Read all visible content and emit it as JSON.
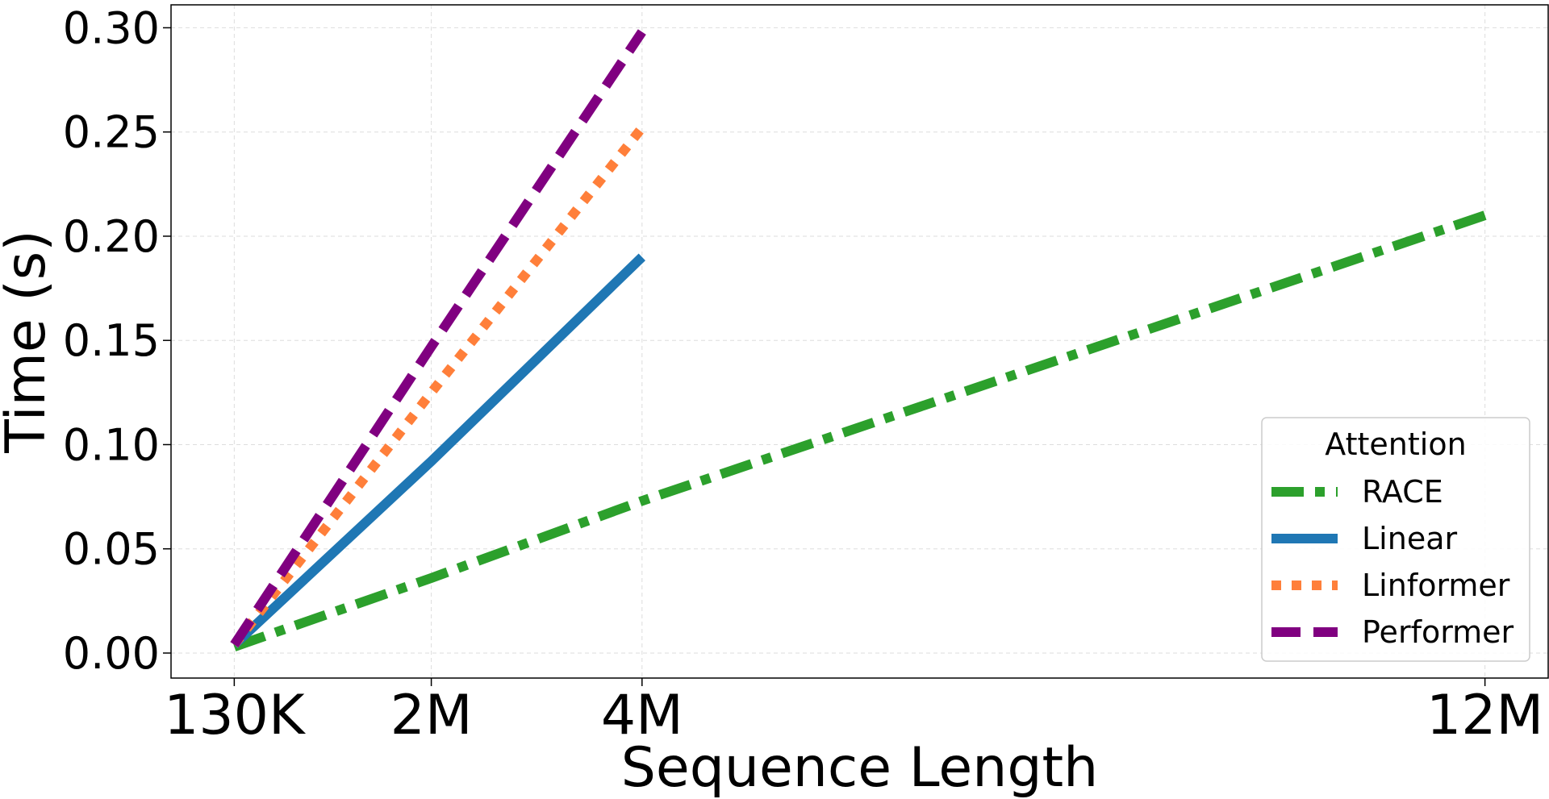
{
  "chart_data": {
    "type": "line",
    "title": "",
    "xlabel": "Sequence Length",
    "ylabel": "Time (s)",
    "x_ticks": [
      {
        "value": 130000,
        "label": "130K"
      },
      {
        "value": 2000000,
        "label": "2M"
      },
      {
        "value": 4000000,
        "label": "4M"
      },
      {
        "value": 12000000,
        "label": "12M"
      }
    ],
    "y_ticks": [
      {
        "value": 0.0,
        "label": "0.00"
      },
      {
        "value": 0.05,
        "label": "0.05"
      },
      {
        "value": 0.1,
        "label": "0.10"
      },
      {
        "value": 0.15,
        "label": "0.15"
      },
      {
        "value": 0.2,
        "label": "0.20"
      },
      {
        "value": 0.25,
        "label": "0.25"
      },
      {
        "value": 0.3,
        "label": "0.30"
      }
    ],
    "xlim": [
      -470000,
      12600000
    ],
    "ylim": [
      -0.012,
      0.311
    ],
    "grid": true,
    "legend": {
      "title": "Attention",
      "position": "lower-right"
    },
    "series": [
      {
        "name": "RACE",
        "color": "#2ca02c",
        "style": "dashdot",
        "x": [
          130000,
          2000000,
          4000000,
          12000000
        ],
        "y": [
          0.003,
          0.036,
          0.073,
          0.21
        ]
      },
      {
        "name": "Linear",
        "color": "#1f77b4",
        "style": "solid",
        "x": [
          130000,
          2000000,
          4000000
        ],
        "y": [
          0.004,
          0.092,
          0.19
        ]
      },
      {
        "name": "Linformer",
        "color": "#ff7f3a",
        "style": "dotted",
        "x": [
          130000,
          2000000,
          4000000
        ],
        "y": [
          0.004,
          0.125,
          0.252
        ]
      },
      {
        "name": "Performer",
        "color": "#800080",
        "style": "dashed",
        "x": [
          130000,
          2000000,
          4000000
        ],
        "y": [
          0.004,
          0.147,
          0.298
        ]
      }
    ]
  }
}
